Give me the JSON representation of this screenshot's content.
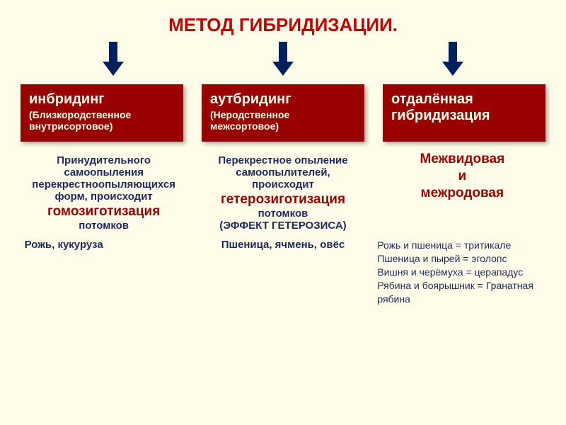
{
  "colors": {
    "background": "#fffde9",
    "title": "#c00000",
    "arrow": "#002060",
    "box_bg": "#990000",
    "box_text": "#fffde9",
    "desc_navy": "#1f2a5a",
    "desc_red": "#990000",
    "example_text": "#1f2a5a"
  },
  "fonts": {
    "title_size": 26,
    "box_title_size": 20,
    "box_sub_size": 14,
    "desc_size": 15,
    "desc_large": 19,
    "example_size": 15,
    "list_size": 14
  },
  "title": "МЕТОД ГИБРИДИЗАЦИИ.",
  "boxes": [
    {
      "title": "инбридинг",
      "sub": "(Близкородственное внутрисортовое)"
    },
    {
      "title": "аутбридинг",
      "sub": "(Неродственное межсортовое)"
    },
    {
      "title": "отдалённая гибридизация",
      "sub": ""
    }
  ],
  "descriptions": [
    {
      "lines": [
        {
          "text": "Принудительного",
          "color": "navy"
        },
        {
          "text": "самоопыления",
          "color": "navy"
        },
        {
          "text": "перекрестноопыляющихся",
          "color": "navy"
        },
        {
          "text": "форм, происходит",
          "color": "navy"
        },
        {
          "text": "гомозиготизация",
          "color": "red",
          "large": true
        },
        {
          "text": "потомков",
          "color": "navy"
        }
      ]
    },
    {
      "lines": [
        {
          "text": "Перекрестное опыление",
          "color": "navy"
        },
        {
          "text": "самоопылителей,",
          "color": "navy"
        },
        {
          "text": "происходит",
          "color": "navy"
        },
        {
          "text": "гетерозиготизация",
          "color": "red",
          "large": true
        },
        {
          "text": "потомков",
          "color": "navy"
        },
        {
          "text": "(ЭФФЕКТ ГЕТЕРОЗИСА)",
          "color": "navy"
        }
      ]
    },
    {
      "lines": [
        {
          "text": "Межвидовая",
          "color": "red",
          "large": true
        },
        {
          "text": "и",
          "color": "red",
          "large": true
        },
        {
          "text": "межродовая",
          "color": "red",
          "large": true
        }
      ]
    }
  ],
  "examples": {
    "col1": "Рожь, кукуруза",
    "col2": "Пшеница, ячмень, овёс",
    "col3_items": [
      "Рожь и пшеница = тритикале",
      "Пшеница и пырей = эголопс",
      "Вишня и черёмуха = церападус",
      "Рябина и боярышник = Гранатная рябина"
    ]
  }
}
